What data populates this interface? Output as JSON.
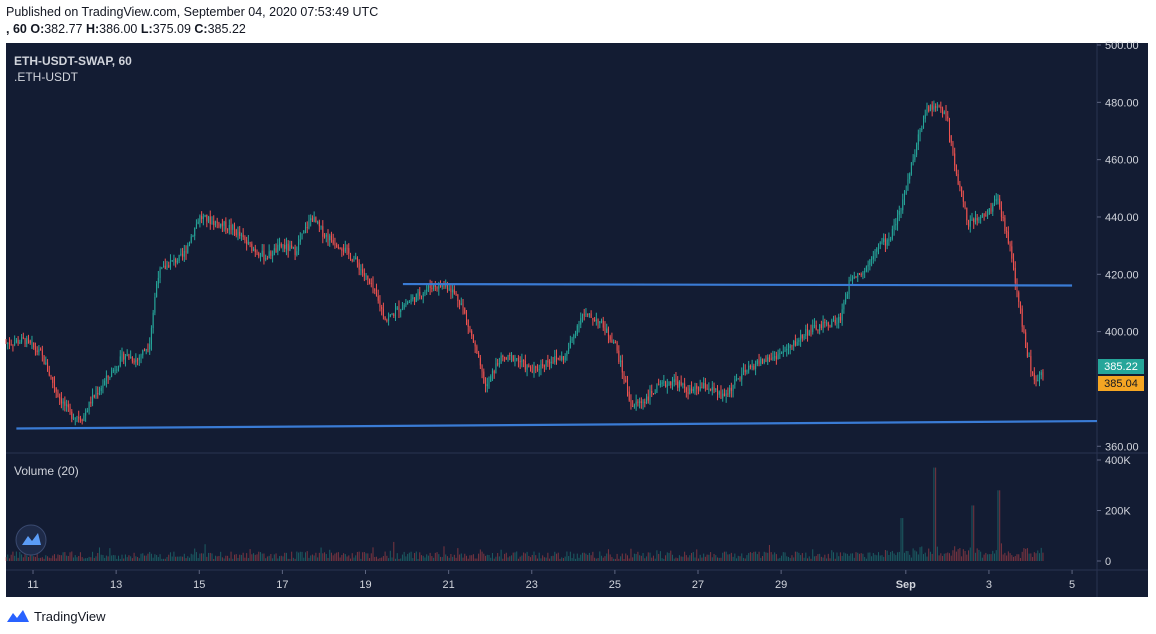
{
  "header": {
    "published": "Published on TradingView.com, September 04, 2020 07:53:49 UTC",
    "prefix": ", 60",
    "o_label": "O:",
    "o": "382.77",
    "h_label": "H:",
    "h": "386.00",
    "l_label": "L:",
    "l": "375.09",
    "c_label": "C:",
    "c": "385.22"
  },
  "price_pane": {
    "symbol": "ETH-USDT-SWAP, 60",
    "sub": ".ETH-USDT"
  },
  "volume_pane": {
    "label": "Volume (20)"
  },
  "last_price_badge": "385.22",
  "second_badge": "385.04",
  "footer": {
    "brand": "TradingView"
  },
  "colors": {
    "bg": "#131c33",
    "up": "#26a69a",
    "down": "#ef5350",
    "trendline": "#3a7bd5",
    "badge_up": "#26a69a",
    "badge_alt": "#f5a623"
  },
  "chart_data": {
    "type": "line",
    "title": "ETH-USDT-SWAP, 60",
    "price_axis": {
      "ticks": [
        "500.00",
        "480.00",
        "460.00",
        "440.00",
        "420.00",
        "400.00",
        "360.00"
      ],
      "ylim": [
        358,
        500
      ]
    },
    "volume_axis": {
      "ticks": [
        "400K",
        "200K",
        "0"
      ],
      "ylim": [
        0,
        400000
      ]
    },
    "x_ticks": [
      "11",
      "13",
      "15",
      "17",
      "19",
      "21",
      "23",
      "25",
      "27",
      "29",
      "Sep",
      "3",
      "5"
    ],
    "x_tick_days": [
      11,
      13,
      15,
      17,
      19,
      21,
      23,
      25,
      27,
      29,
      32,
      34,
      36
    ],
    "xlim": [
      10.35,
      36.6
    ],
    "series": [
      {
        "x": [
          10.35,
          10.8,
          11.2,
          11.6,
          11.9,
          12.2,
          12.4,
          12.8,
          13.2,
          13.5,
          13.8,
          14.0,
          14.3,
          14.6,
          15.0,
          15.4,
          15.8,
          16.2,
          16.6,
          17.0,
          17.3,
          17.7,
          18.0,
          18.4,
          18.8,
          19.2,
          19.5,
          19.8,
          20.2,
          20.6,
          21.0,
          21.3,
          21.6,
          21.9,
          22.2,
          22.6,
          23.0,
          23.4,
          23.8,
          24.2,
          24.6,
          25.0,
          25.4,
          25.7,
          26.0,
          26.4,
          26.8,
          27.2,
          27.6,
          28.0,
          28.4,
          28.8,
          29.2,
          29.6,
          30.0,
          30.4,
          30.7,
          31.0,
          31.3,
          31.6,
          31.9,
          32.2,
          32.5,
          32.8,
          33.0,
          33.2,
          33.5,
          33.9,
          34.2,
          34.5,
          34.7,
          34.9,
          35.1,
          35.3
        ],
        "close": [
          396,
          397,
          392,
          378,
          371,
          370,
          376,
          384,
          392,
          390,
          396,
          420,
          424,
          426,
          440,
          438,
          436,
          430,
          426,
          430,
          428,
          440,
          434,
          430,
          424,
          414,
          404,
          408,
          412,
          416,
          416,
          410,
          396,
          380,
          390,
          391,
          386,
          390,
          391,
          406,
          404,
          396,
          374,
          376,
          380,
          383,
          379,
          381,
          377,
          384,
          389,
          391,
          394,
          400,
          402,
          404,
          420,
          421,
          430,
          432,
          444,
          462,
          478,
          479,
          474,
          456,
          438,
          440,
          446,
          430,
          412,
          394,
          382,
          385
        ]
      }
    ],
    "trendlines": [
      {
        "from": [
          10.6,
          366.2
        ],
        "to": [
          36.6,
          368.8
        ]
      },
      {
        "from": [
          19.9,
          416.6
        ],
        "to": [
          36.0,
          416.1
        ]
      }
    ],
    "volume_note": "Volume bars mostly below 100K; spikes near Sep 2 (~370K) and Sep 3 (~280K)"
  }
}
